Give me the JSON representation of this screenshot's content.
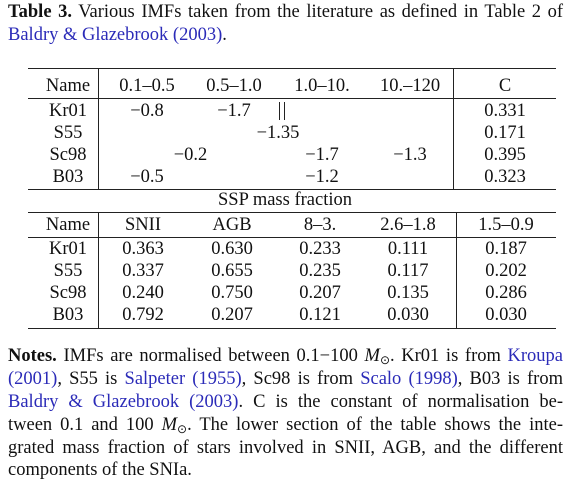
{
  "caption": {
    "lines": [
      [
        {
          "text": "Table 3.",
          "bold": true
        },
        {
          "text": " Various IMFs taken from the literature as defined in Table 2 of"
        }
      ],
      [
        {
          "text": "Baldry & Glazebrook (2003)",
          "link": true
        },
        {
          "text": "."
        }
      ]
    ]
  },
  "table": {
    "upper": {
      "header": [
        "Name",
        "0.1–0.5",
        "0.5–1.0",
        "1.0–10.",
        "10.–120",
        "C"
      ],
      "rows": [
        {
          "name": "Kr01",
          "cells": [
            {
              "text": "−0.8",
              "cols": [
                1,
                1
              ]
            },
            {
              "text": "−1.7",
              "cols": [
                2,
                2
              ]
            }
          ],
          "c": "0.331"
        },
        {
          "name": "S55",
          "cells": [
            {
              "text": "−1.35",
              "cols": [
                2,
                3
              ]
            }
          ],
          "c": "0.171"
        },
        {
          "name": "Sc98",
          "cells": [
            {
              "text": "−0.2",
              "cols": [
                1,
                2
              ]
            },
            {
              "text": "−1.7",
              "cols": [
                3,
                3
              ]
            },
            {
              "text": "−1.3",
              "cols": [
                4,
                4
              ]
            }
          ],
          "c": "0.395"
        },
        {
          "name": "B03",
          "cells": [
            {
              "text": "−0.5",
              "cols": [
                1,
                1
              ]
            },
            {
              "text": "−1.2",
              "cols": [
                2,
                4
              ]
            }
          ],
          "c": "0.323"
        }
      ]
    },
    "section": "SSP mass fraction",
    "lower": {
      "header": [
        "Name",
        "SNII",
        "AGB",
        "8–3.",
        "2.6–1.8",
        "1.5–0.9"
      ],
      "rows": [
        [
          "Kr01",
          "0.363",
          "0.630",
          "0.233",
          "0.111",
          "0.187"
        ],
        [
          "S55",
          "0.337",
          "0.655",
          "0.235",
          "0.117",
          "0.202"
        ],
        [
          "Sc98",
          "0.240",
          "0.750",
          "0.207",
          "0.135",
          "0.286"
        ],
        [
          "B03",
          "0.792",
          "0.207",
          "0.121",
          "0.030",
          "0.030"
        ]
      ]
    }
  },
  "notes": {
    "lines": [
      [
        {
          "text": "Notes.",
          "bold": true
        },
        {
          "text": " IMFs are normalised between 0.1−100 "
        },
        {
          "text": "M",
          "italic": true,
          "sub": "⊙"
        },
        {
          "text": ". Kr01 is from "
        },
        {
          "text": "Kroupa",
          "link": true
        }
      ],
      [
        {
          "text": "(2001)",
          "link": true
        },
        {
          "text": ", S55 is "
        },
        {
          "text": "Salpeter (1955)",
          "link": true
        },
        {
          "text": ", Sc98 is from "
        },
        {
          "text": "Scalo (1998)",
          "link": true
        },
        {
          "text": ", B03 is from"
        }
      ],
      [
        {
          "text": "Baldry & Glazebrook (2003)",
          "link": true
        },
        {
          "text": ". C is the constant of normalisation be-"
        }
      ],
      [
        {
          "text": "tween 0.1 and 100 "
        },
        {
          "text": "M",
          "italic": true,
          "sub": "⊙"
        },
        {
          "text": ". The lower section of the table shows the inte-"
        }
      ],
      [
        {
          "text": "grated mass fraction of stars involved in SNII, AGB, and the different"
        }
      ],
      [
        {
          "text": "components of the SNIa."
        }
      ]
    ]
  }
}
